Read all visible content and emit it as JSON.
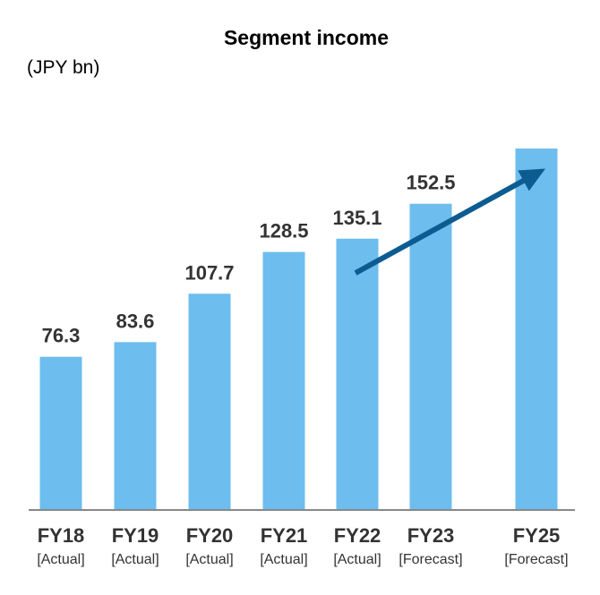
{
  "chart_data": {
    "type": "bar",
    "title": "Segment income",
    "unit_label": "(JPY bn)",
    "categories": [
      "FY18",
      "FY19",
      "FY20",
      "FY21",
      "FY22",
      "FY23",
      "FY25"
    ],
    "sublabels": [
      "[Actual]",
      "[Actual]",
      "[Actual]",
      "[Actual]",
      "[Actual]",
      "[Forecast]",
      "[Forecast]"
    ],
    "values": [
      76.3,
      83.6,
      107.7,
      128.5,
      135.1,
      152.5,
      180
    ],
    "data_labels": [
      "76.3",
      "83.6",
      "107.7",
      "128.5",
      "135.1",
      "152.5",
      ""
    ],
    "ylim": [
      0,
      180
    ],
    "grid": false,
    "trend_arrow": {
      "from_category": "FY22",
      "to_category": "FY25",
      "from_value": 118,
      "to_value": 170
    },
    "colors": {
      "bar": "#6dbdee",
      "arrow": "#0d5c91",
      "text": "#333333",
      "axis": "#888888"
    }
  }
}
